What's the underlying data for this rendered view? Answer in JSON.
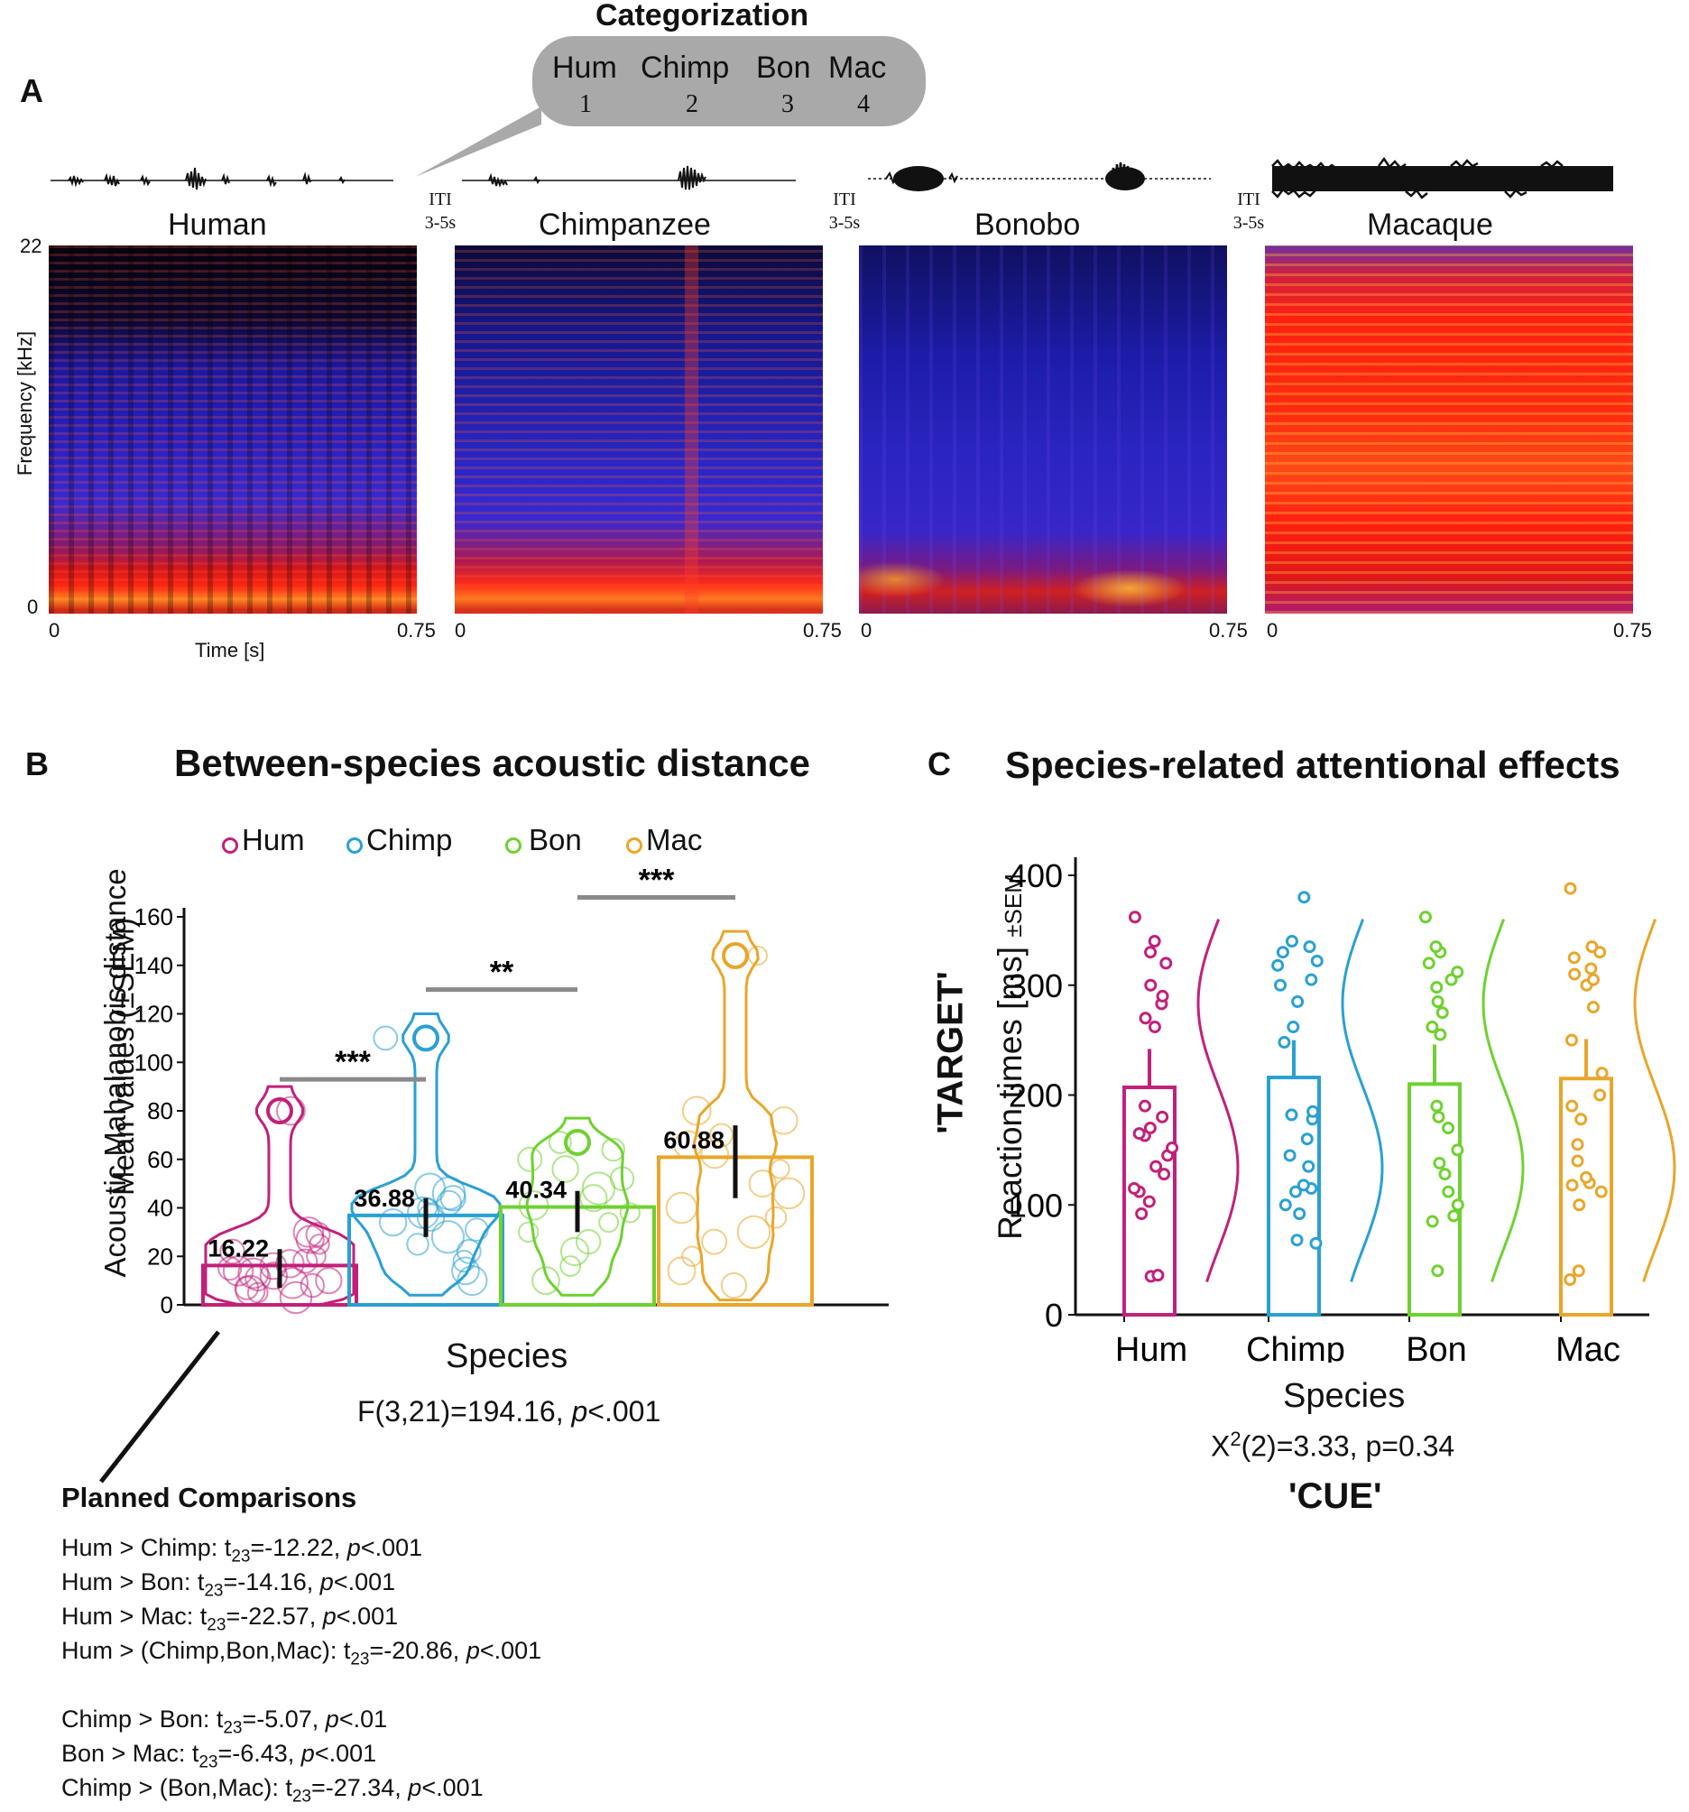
{
  "panel_a": {
    "letter": "A",
    "categorization_title": "Categorization",
    "bubble_labels": [
      "Hum",
      "Chimp",
      "Bon",
      "Mac"
    ],
    "bubble_numbers": [
      "1",
      "2",
      "3",
      "4"
    ],
    "iti": {
      "label": "ITI",
      "duration": "3-5s"
    },
    "species": [
      "Human",
      "Chimpanzee",
      "Bonobo",
      "Macaque"
    ],
    "y_axis_label": "Frequency [kHz]",
    "y_top": "22",
    "y_bottom": "0",
    "x_axis_label": "Time [s]",
    "x_start": "0",
    "x_end": "0.75"
  },
  "chart_data": [
    {
      "type": "bar",
      "panel": "B",
      "title": "Between-species acoustic distance",
      "categories": [
        "Hum",
        "Chimp",
        "Bon",
        "Mac"
      ],
      "values": [
        16.22,
        36.88,
        40.34,
        60.88
      ],
      "value_labels": [
        "16.22",
        "36.88",
        "40.34",
        "60.88"
      ],
      "sem_ranges": [
        [
          7,
          23
        ],
        [
          28,
          44
        ],
        [
          30,
          47
        ],
        [
          44,
          74
        ]
      ],
      "colors": [
        "#c2207a",
        "#2aa0d2",
        "#6fd130",
        "#e8a62a"
      ],
      "ylabel_outer": "Acoustic Mahalanobis distance",
      "ylabel_inner": "Mean values (±SEM)",
      "ylim": [
        0,
        160
      ],
      "yticks": [
        "0",
        "20",
        "40",
        "60",
        "80",
        "100",
        "120",
        "140",
        "160"
      ],
      "xlabel": "Species",
      "stats": {
        "prefix": "F(3,21)=194.16, ",
        "p_italic": "p",
        "suffix": "<.001"
      },
      "significance": [
        {
          "from": "Hum",
          "to": "Chimp",
          "stars": "***",
          "level": 93
        },
        {
          "from": "Chimp",
          "to": "Bon",
          "stars": "**",
          "level": 130
        },
        {
          "from": "Bon",
          "to": "Mac",
          "stars": "***",
          "level": 168
        }
      ],
      "point_clouds": {
        "Hum": [
          3,
          5,
          6,
          7,
          8,
          9,
          10,
          11,
          12,
          13,
          14,
          15,
          16,
          17,
          18,
          20,
          22,
          25,
          27,
          29,
          30,
          80
        ],
        "Chimp": [
          10,
          14,
          18,
          22,
          25,
          28,
          31,
          34,
          36,
          38,
          40,
          42,
          44,
          46,
          48,
          110
        ],
        "Bon": [
          10,
          16,
          22,
          26,
          30,
          34,
          38,
          41,
          44,
          48,
          52,
          56,
          60,
          64,
          67
        ],
        "Mac": [
          8,
          14,
          20,
          26,
          30,
          36,
          40,
          46,
          50,
          56,
          62,
          66,
          70,
          76,
          80,
          144
        ]
      }
    },
    {
      "type": "bar",
      "panel": "C",
      "title": "Species-related attentional effects",
      "categories": [
        "Hum",
        "Chimp",
        "Bon",
        "Mac"
      ],
      "values": [
        207,
        216,
        210,
        215
      ],
      "sem_ranges": [
        [
          175,
          242
        ],
        [
          182,
          250
        ],
        [
          176,
          246
        ],
        [
          180,
          251
        ]
      ],
      "colors": [
        "#c2207a",
        "#2aa0d2",
        "#6fd130",
        "#e8a62a"
      ],
      "ylabel_bold": "'TARGET'",
      "ylabel_main": "Reaction times [ms]",
      "ylabel_small": "±SEM",
      "ylim": [
        0,
        400
      ],
      "yticks": [
        "0",
        "100",
        "200",
        "300",
        "400"
      ],
      "xlabel": "Species",
      "stats": {
        "x": "X",
        "sup": "2",
        "rest": "(2)=3.33, p=0.34"
      },
      "cue": "'CUE'",
      "points": {
        "Hum": [
          35,
          36,
          92,
          103,
          112,
          115,
          128,
          135,
          145,
          152,
          163,
          165,
          170,
          180,
          190,
          262,
          270,
          283,
          290,
          300,
          320,
          330,
          340,
          362
        ],
        "Chimp": [
          65,
          68,
          92,
          100,
          112,
          115,
          118,
          135,
          145,
          160,
          178,
          182,
          185,
          248,
          262,
          285,
          300,
          305,
          318,
          322,
          330,
          335,
          340,
          380
        ],
        "Bon": [
          40,
          85,
          90,
          100,
          112,
          128,
          138,
          150,
          170,
          180,
          190,
          255,
          262,
          275,
          285,
          298,
          305,
          312,
          320,
          330,
          335,
          362
        ],
        "Mac": [
          32,
          40,
          100,
          112,
          118,
          120,
          125,
          140,
          155,
          178,
          190,
          200,
          220,
          250,
          280,
          300,
          305,
          310,
          315,
          325,
          330,
          335,
          388
        ]
      }
    }
  ],
  "panel_b_legend": [
    "Hum",
    "Chimp",
    "Bon",
    "Mac"
  ],
  "panel_b_letter": "B",
  "panel_c_letter": "C",
  "planned": {
    "heading": "Planned Comparisons",
    "lines": [
      {
        "pre": "Hum > Chimp: t",
        "sub": "23",
        "val": "=-12.22, ",
        "p": "p",
        "post": "<.001"
      },
      {
        "pre": "Hum > Bon: t",
        "sub": "23",
        "val": "=-14.16, ",
        "p": "p",
        "post": "<.001"
      },
      {
        "pre": "Hum > Mac: t",
        "sub": "23",
        "val": "=-22.57, ",
        "p": "p",
        "post": "<.001"
      },
      {
        "pre": "Hum > (Chimp,Bon,Mac): t",
        "sub": "23",
        "val": "=-20.86, ",
        "p": "p",
        "post": "<.001"
      },
      {
        "pre": "Chimp > Bon: t",
        "sub": "23",
        "val": "=-5.07, ",
        "p": "p",
        "post": "<.01"
      },
      {
        "pre": "Bon > Mac: t",
        "sub": "23",
        "val": "=-6.43, ",
        "p": "p",
        "post": "<.001"
      },
      {
        "pre": "Chimp > (Bon,Mac): t",
        "sub": "23",
        "val": "=-27.34, ",
        "p": "p",
        "post": "<.001"
      }
    ]
  }
}
